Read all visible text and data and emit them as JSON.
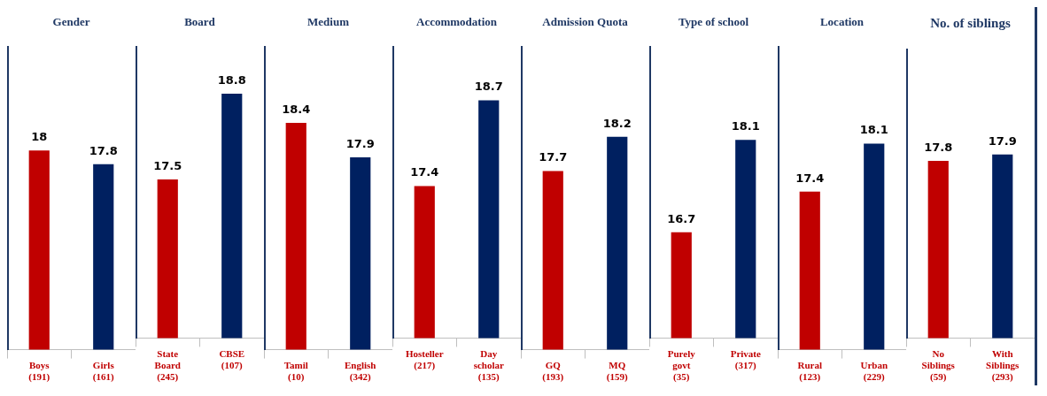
{
  "chart_data": [
    {
      "type": "bar",
      "title": "Gender",
      "categories": [
        "Boys (191)",
        "Girls (161)"
      ],
      "values": [
        18,
        17.8
      ],
      "colors": [
        "#c00000",
        "#002060"
      ],
      "data_labels": true,
      "ylim": [
        15.1,
        19.5
      ],
      "tick_labels": "x",
      "grid": false,
      "legend": false
    },
    {
      "type": "bar",
      "title": "Board",
      "categories": [
        "State Board (245)",
        "CBSE (107)"
      ],
      "values": [
        17.5,
        18.8
      ],
      "colors": [
        "#c00000",
        "#002060"
      ],
      "data_labels": true,
      "ylim": [
        15.1,
        19.5
      ],
      "tick_labels": "x",
      "grid": false,
      "legend": false
    },
    {
      "type": "bar",
      "title": "Medium",
      "categories": [
        "Tamil (10)",
        "English (342)"
      ],
      "values": [
        18.4,
        17.9
      ],
      "colors": [
        "#c00000",
        "#002060"
      ],
      "data_labels": true,
      "ylim": [
        15.1,
        19.5
      ],
      "tick_labels": "x",
      "grid": false,
      "legend": false
    },
    {
      "type": "bar",
      "title": "Accommodation",
      "categories": [
        "Hosteller (217)",
        "Day scholar (135)"
      ],
      "values": [
        17.4,
        18.7
      ],
      "colors": [
        "#c00000",
        "#002060"
      ],
      "data_labels": true,
      "ylim": [
        15.1,
        19.5
      ],
      "tick_labels": "x",
      "grid": false,
      "legend": false
    },
    {
      "type": "bar",
      "title": "Admission Quota",
      "categories": [
        "GQ (193)",
        "MQ (159)"
      ],
      "values": [
        17.7,
        18.2
      ],
      "colors": [
        "#c00000",
        "#002060"
      ],
      "data_labels": true,
      "ylim": [
        15.1,
        19.5
      ],
      "tick_labels": "x",
      "grid": false,
      "legend": false
    },
    {
      "type": "bar",
      "title": "Type of school",
      "categories": [
        "Purely govt (35)",
        "Private (317)"
      ],
      "values": [
        16.7,
        18.1
      ],
      "colors": [
        "#c00000",
        "#002060"
      ],
      "data_labels": true,
      "ylim": [
        15.1,
        19.5
      ],
      "tick_labels": "x",
      "grid": false,
      "legend": false
    },
    {
      "type": "bar",
      "title": "Location",
      "categories": [
        "Rural (123)",
        "Urban (229)"
      ],
      "values": [
        17.4,
        18.1
      ],
      "colors": [
        "#c00000",
        "#002060"
      ],
      "data_labels": true,
      "ylim": [
        15.1,
        19.5
      ],
      "tick_labels": "x",
      "grid": false,
      "legend": false
    },
    {
      "type": "bar",
      "title": "No. of siblings",
      "categories": [
        "No Siblings (59)",
        "With Siblings (293)"
      ],
      "values": [
        17.8,
        17.9
      ],
      "colors": [
        "#c00000",
        "#002060"
      ],
      "data_labels": true,
      "ylim": [
        15.1,
        19.5
      ],
      "tick_labels": "x",
      "grid": false,
      "legend": false
    }
  ]
}
